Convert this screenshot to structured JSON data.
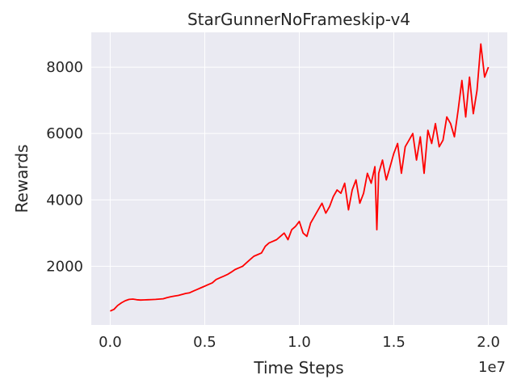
{
  "chart_data": {
    "type": "line",
    "title": "StarGunnerNoFrameskip-v4",
    "xlabel": "Time Steps",
    "ylabel": "Rewards",
    "x_offset_label": "1e7",
    "x_ticks": [
      0.0,
      0.5,
      1.0,
      1.5,
      2.0
    ],
    "x_tick_labels": [
      "0.0",
      "0.5",
      "1.0",
      "1.5",
      "2.0"
    ],
    "y_ticks": [
      2000,
      4000,
      6000,
      8000
    ],
    "y_tick_labels": [
      "2000",
      "4000",
      "6000",
      "8000"
    ],
    "xlim": [
      -0.1,
      2.1
    ],
    "ylim": [
      230,
      9050
    ],
    "grid": true,
    "background": "#EAEAF2",
    "series": [
      {
        "color": "#FF0000",
        "x": [
          0.0,
          0.02,
          0.04,
          0.06,
          0.08,
          0.1,
          0.12,
          0.14,
          0.16,
          0.18,
          0.2,
          0.22,
          0.24,
          0.26,
          0.28,
          0.3,
          0.32,
          0.34,
          0.36,
          0.38,
          0.4,
          0.42,
          0.44,
          0.46,
          0.48,
          0.5,
          0.52,
          0.54,
          0.56,
          0.58,
          0.6,
          0.62,
          0.64,
          0.66,
          0.68,
          0.7,
          0.72,
          0.74,
          0.76,
          0.78,
          0.8,
          0.82,
          0.84,
          0.86,
          0.88,
          0.9,
          0.92,
          0.94,
          0.96,
          0.98,
          1.0,
          1.02,
          1.04,
          1.06,
          1.08,
          1.1,
          1.12,
          1.14,
          1.16,
          1.18,
          1.2,
          1.22,
          1.24,
          1.26,
          1.28,
          1.3,
          1.32,
          1.34,
          1.36,
          1.38,
          1.4,
          1.41,
          1.42,
          1.44,
          1.46,
          1.48,
          1.5,
          1.52,
          1.54,
          1.56,
          1.58,
          1.6,
          1.62,
          1.64,
          1.66,
          1.68,
          1.7,
          1.72,
          1.74,
          1.76,
          1.78,
          1.8,
          1.82,
          1.84,
          1.86,
          1.88,
          1.9,
          1.92,
          1.94,
          1.96,
          1.98,
          2.0
        ],
        "y": [
          650,
          700,
          820,
          900,
          960,
          1000,
          1010,
          990,
          980,
          985,
          990,
          995,
          1000,
          1010,
          1020,
          1050,
          1080,
          1100,
          1120,
          1150,
          1180,
          1200,
          1250,
          1300,
          1350,
          1400,
          1450,
          1500,
          1600,
          1650,
          1700,
          1750,
          1820,
          1900,
          1950,
          2000,
          2100,
          2200,
          2300,
          2350,
          2400,
          2600,
          2700,
          2750,
          2800,
          2900,
          3000,
          2800,
          3100,
          3200,
          3350,
          3000,
          2900,
          3300,
          3500,
          3700,
          3900,
          3600,
          3800,
          4100,
          4300,
          4200,
          4500,
          3700,
          4300,
          4600,
          3900,
          4200,
          4800,
          4500,
          5000,
          3100,
          4800,
          5200,
          4600,
          5000,
          5400,
          5700,
          4800,
          5600,
          5800,
          6000,
          5200,
          5900,
          4800,
          6100,
          5700,
          6300,
          5600,
          5800,
          6500,
          6300,
          5900,
          6700,
          7600,
          6500,
          7700,
          6600,
          7300,
          8700,
          7700,
          8000
        ]
      }
    ]
  }
}
